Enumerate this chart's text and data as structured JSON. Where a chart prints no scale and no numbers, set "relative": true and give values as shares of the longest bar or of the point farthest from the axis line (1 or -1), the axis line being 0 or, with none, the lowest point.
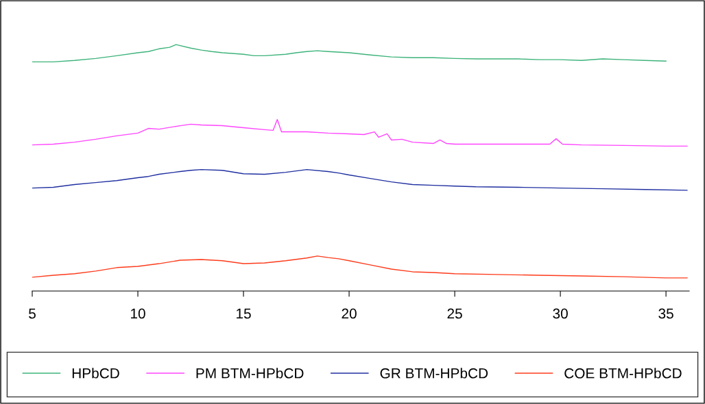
{
  "chart_data": {
    "type": "line",
    "relative": true,
    "xlim": [
      5,
      36.1
    ],
    "xticks": [
      5,
      10,
      15,
      20,
      25,
      30,
      35
    ],
    "legend": "bottom",
    "grid": false,
    "series": [
      {
        "name": "HPbCD",
        "color": "#3cb37a",
        "x": [
          5,
          6,
          7,
          8,
          9,
          10,
          10.5,
          11,
          11.5,
          11.8,
          12.5,
          13,
          13.5,
          14,
          15,
          15.5,
          16,
          17,
          17.5,
          18,
          18.5,
          19,
          20,
          21,
          22,
          23,
          24,
          25,
          26,
          27,
          28,
          29,
          30,
          31,
          32,
          33,
          34,
          35
        ],
        "values": [
          0.93,
          0.93,
          0.936,
          0.944,
          0.955,
          0.967,
          0.972,
          0.983,
          0.989,
          1.0,
          0.986,
          0.978,
          0.972,
          0.967,
          0.961,
          0.955,
          0.955,
          0.961,
          0.967,
          0.972,
          0.975,
          0.972,
          0.967,
          0.958,
          0.95,
          0.947,
          0.947,
          0.944,
          0.942,
          0.942,
          0.942,
          0.939,
          0.939,
          0.936,
          0.942,
          0.939,
          0.936,
          0.933
        ]
      },
      {
        "name": "PM BTM-HPbCD",
        "color": "#ff44ff",
        "x": [
          5,
          6,
          7,
          8,
          9,
          10,
          10.5,
          11,
          12,
          12.5,
          13,
          14,
          15,
          16,
          16.4,
          16.6,
          16.8,
          17,
          18,
          19,
          20,
          20.7,
          21.2,
          21.4,
          21.8,
          22,
          22.5,
          23,
          24,
          24.3,
          24.6,
          25,
          27,
          29.5,
          29.8,
          30.1,
          31,
          33,
          35,
          36
        ],
        "values": [
          0.593,
          0.596,
          0.604,
          0.616,
          0.63,
          0.641,
          0.66,
          0.657,
          0.671,
          0.677,
          0.674,
          0.671,
          0.663,
          0.655,
          0.652,
          0.696,
          0.646,
          0.646,
          0.646,
          0.641,
          0.638,
          0.635,
          0.646,
          0.624,
          0.638,
          0.613,
          0.616,
          0.604,
          0.599,
          0.613,
          0.599,
          0.596,
          0.596,
          0.596,
          0.618,
          0.596,
          0.593,
          0.591,
          0.588,
          0.588
        ]
      },
      {
        "name": "GR BTM-HPbCD",
        "color": "#1f2fa0",
        "x": [
          5,
          6,
          7,
          8,
          9,
          10,
          10.5,
          11,
          12,
          12.5,
          13,
          14,
          15,
          16,
          17,
          18,
          19,
          19.5,
          20,
          21,
          22,
          23,
          24,
          25,
          26,
          28,
          30,
          32,
          34,
          36
        ],
        "values": [
          0.418,
          0.421,
          0.432,
          0.44,
          0.448,
          0.46,
          0.465,
          0.474,
          0.485,
          0.49,
          0.493,
          0.49,
          0.476,
          0.474,
          0.482,
          0.493,
          0.485,
          0.479,
          0.471,
          0.457,
          0.443,
          0.432,
          0.429,
          0.426,
          0.423,
          0.421,
          0.418,
          0.415,
          0.412,
          0.409
        ]
      },
      {
        "name": "COE BTM-HPbCD",
        "color": "#ff3a1a",
        "x": [
          5,
          6,
          7,
          8,
          9,
          10,
          11,
          12,
          13,
          14,
          15,
          16,
          17,
          18,
          18.5,
          19,
          19.5,
          20,
          21,
          22,
          23,
          24,
          25,
          27,
          29,
          31,
          33,
          35,
          36
        ],
        "values": [
          0.056,
          0.064,
          0.07,
          0.081,
          0.095,
          0.1,
          0.111,
          0.125,
          0.128,
          0.123,
          0.111,
          0.114,
          0.123,
          0.134,
          0.142,
          0.136,
          0.131,
          0.123,
          0.106,
          0.089,
          0.078,
          0.075,
          0.07,
          0.067,
          0.064,
          0.061,
          0.058,
          0.053,
          0.053
        ]
      }
    ]
  }
}
